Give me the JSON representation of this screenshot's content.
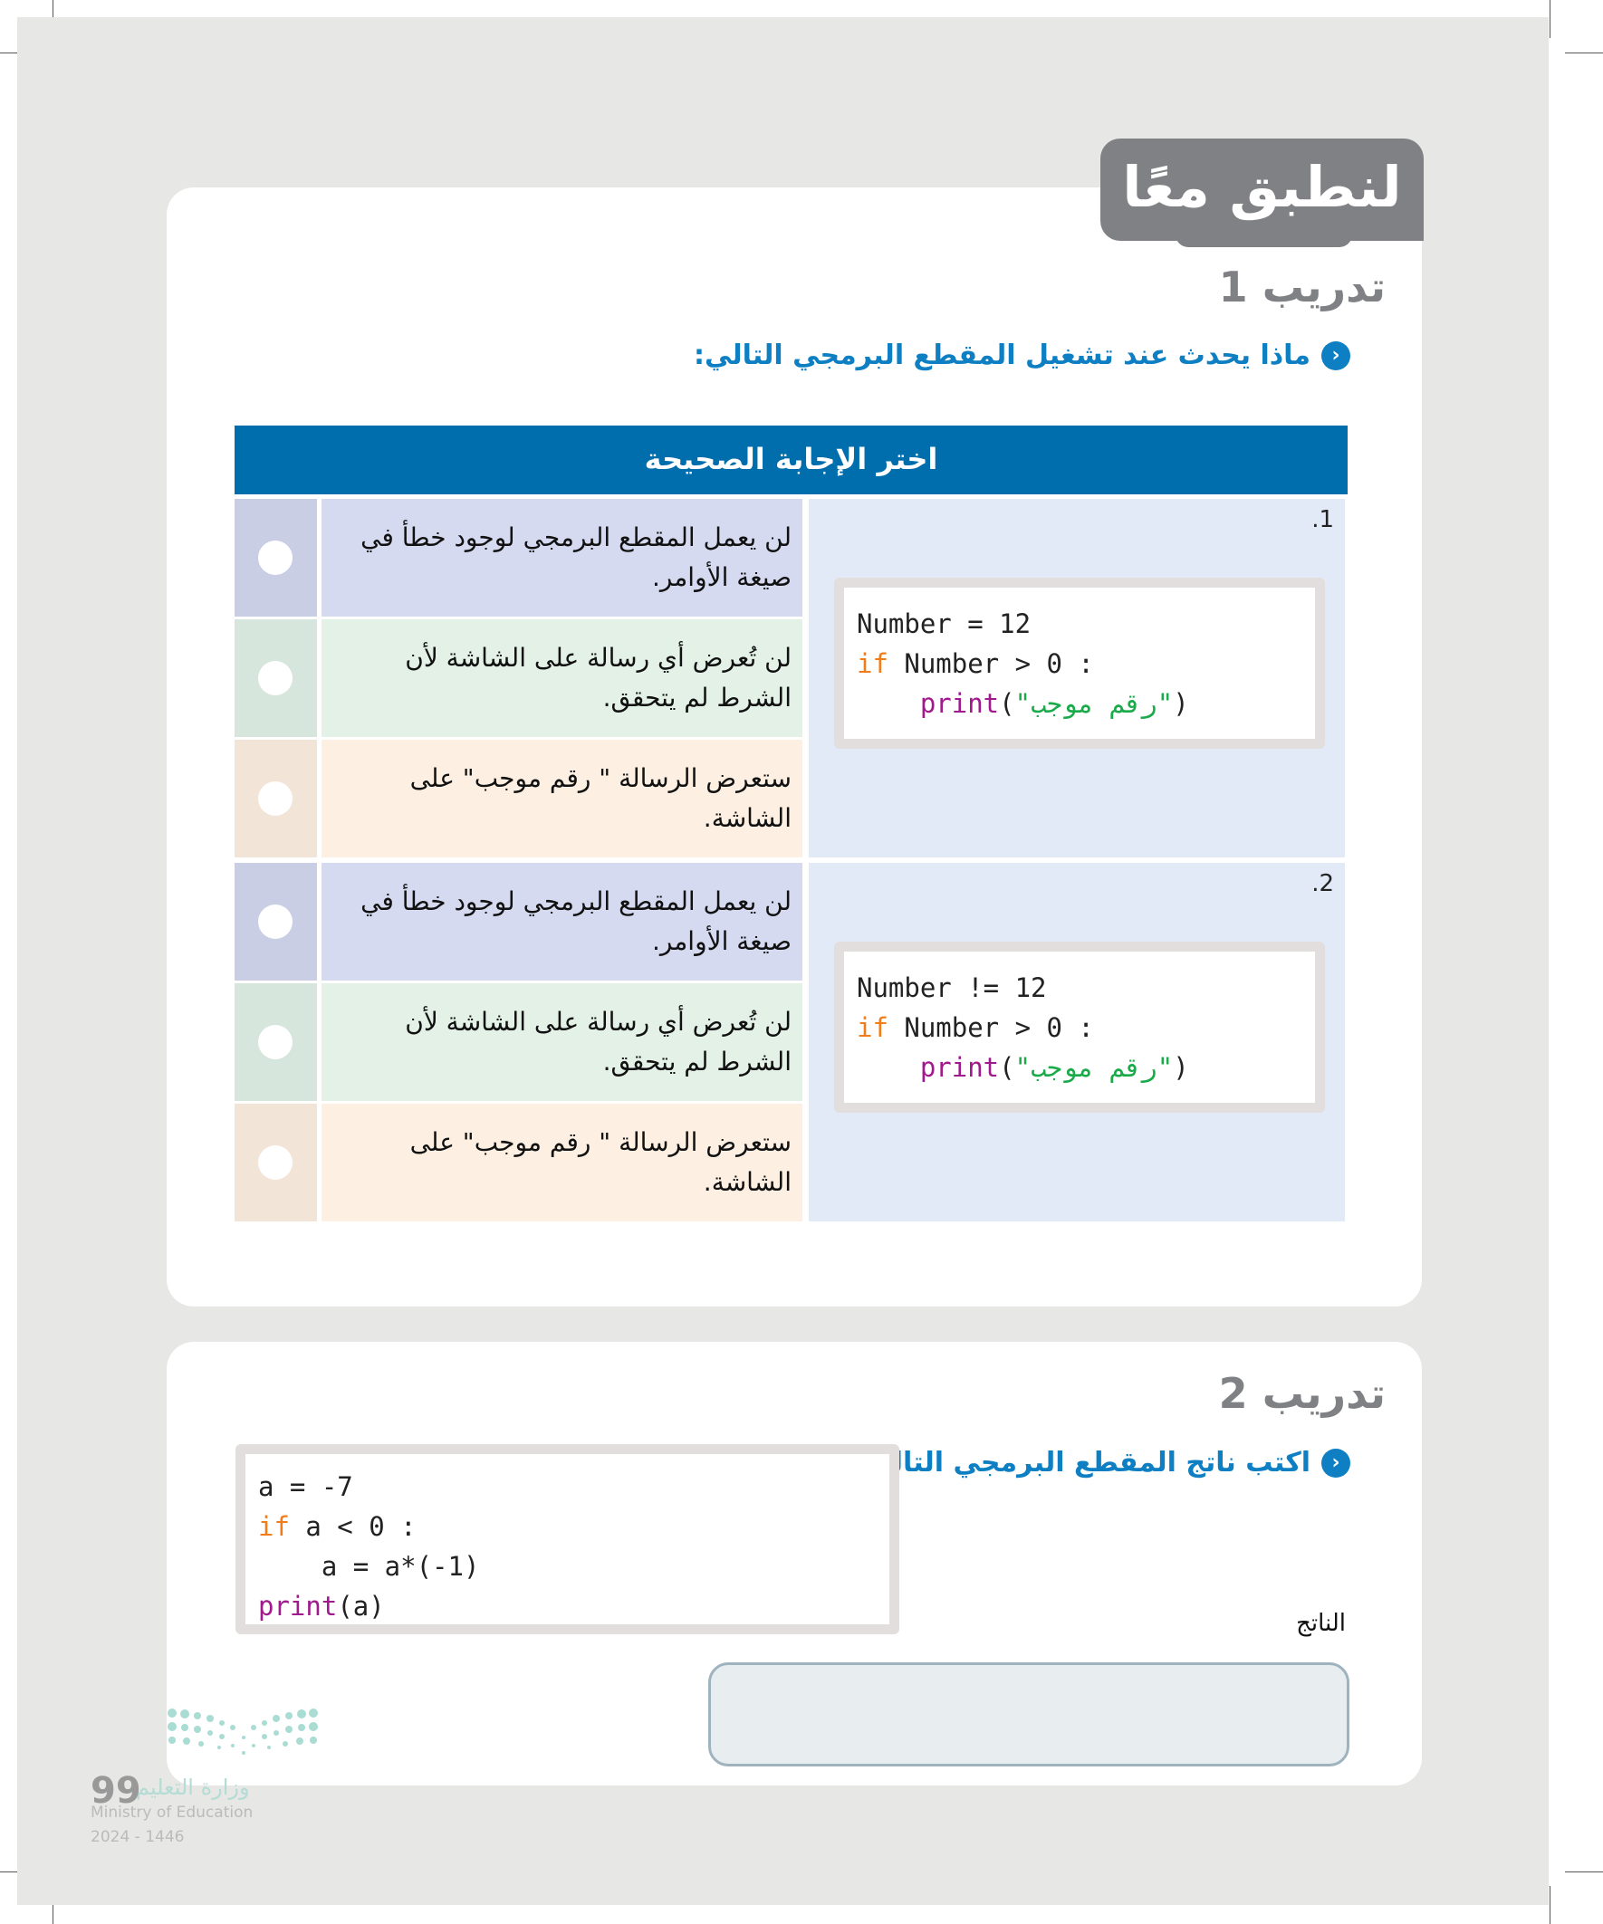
{
  "header_tab": "لنطبق معًا",
  "exercise1": {
    "title": "تدريب 1",
    "question": "ماذا يحدث عند تشغيل المقطع البرمجي التالي:",
    "table_header": "اختر الإجابة الصحيحة",
    "items": [
      {
        "number": ".1",
        "code": [
          {
            "plain": "Number = 12"
          },
          {
            "kw": "if",
            "rest": " Number > 0 :"
          },
          {
            "indent": "    ",
            "fn": "print",
            "open": "(",
            "str": "\"رقم موجب\"",
            "close": ")"
          }
        ],
        "options": [
          "لن يعمل المقطع البرمجي لوجود خطأ في صيغة الأوامر.",
          "لن تُعرض أي رسالة على الشاشة لأن الشرط لم يتحقق.",
          "ستعرض الرسالة \" رقم موجب\" على الشاشة."
        ]
      },
      {
        "number": ".2",
        "code": [
          {
            "plain": "Number != 12"
          },
          {
            "kw": "if",
            "rest": " Number > 0 :"
          },
          {
            "indent": "    ",
            "fn": "print",
            "open": "(",
            "str": "\"رقم موجب\"",
            "close": ")"
          }
        ],
        "options": [
          "لن يعمل المقطع البرمجي لوجود خطأ في صيغة الأوامر.",
          "لن تُعرض أي رسالة على الشاشة لأن الشرط لم يتحقق.",
          "ستعرض الرسالة \" رقم موجب\" على الشاشة."
        ]
      }
    ]
  },
  "exercise2": {
    "title": "تدريب 2",
    "question": "اكتب ناتج المقطع البرمجي التالي:",
    "code": {
      "l1": "a = -7",
      "l2_kw": "if",
      "l2_rest": " a < 0 :",
      "l3": "    a = a*(-1)",
      "l4_fn": "print",
      "l4_rest": "(a)"
    },
    "output_label": "الناتج",
    "output_value": ""
  },
  "footer": {
    "ministry_ar": "وزارة التعليم",
    "ministry_en": "Ministry of Education",
    "year": "2024 - 1446",
    "page_number": "99"
  },
  "colors": {
    "accent_blue": "#006eac",
    "question_blue": "#0d7fc2",
    "tab_gray": "#808184"
  }
}
